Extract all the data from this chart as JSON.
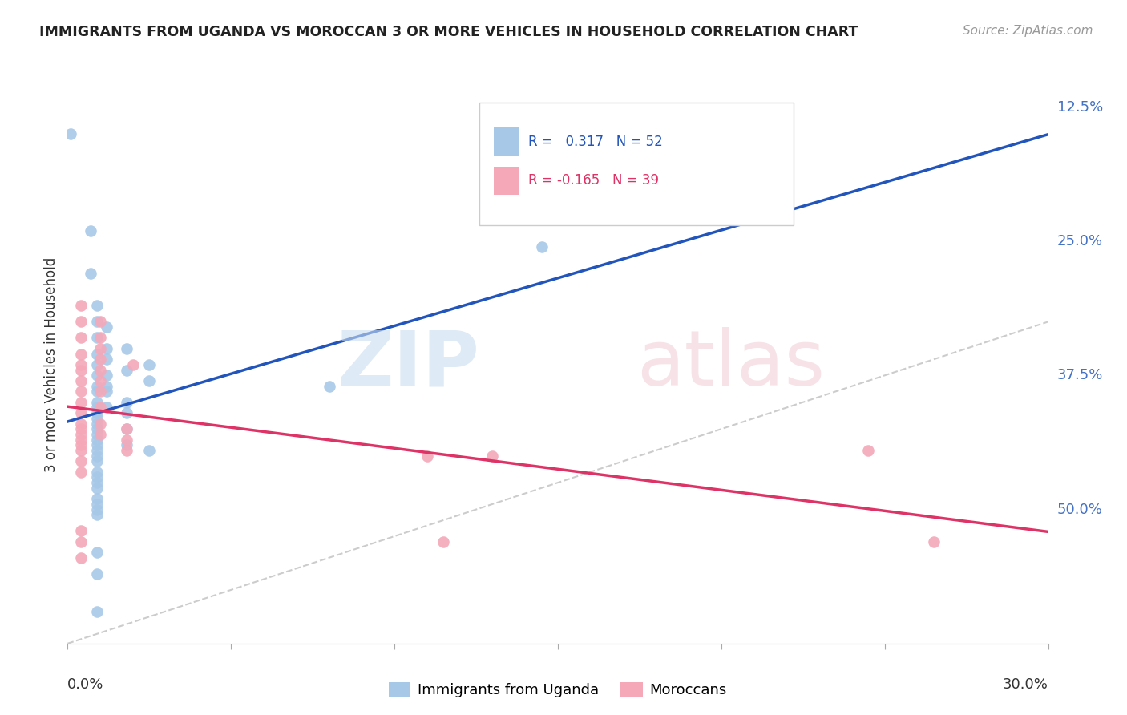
{
  "title": "IMMIGRANTS FROM UGANDA VS MOROCCAN 3 OR MORE VEHICLES IN HOUSEHOLD CORRELATION CHART",
  "source": "Source: ZipAtlas.com",
  "ylabel": "3 or more Vehicles in Household",
  "right_axis_labels": [
    "50.0%",
    "37.5%",
    "25.0%",
    "12.5%"
  ],
  "xlim": [
    0.0,
    0.3
  ],
  "ylim": [
    0.0,
    0.52
  ],
  "uganda_color": "#a8c8e8",
  "morocco_color": "#f4a8b8",
  "uganda_line_color": "#2255bb",
  "morocco_line_color": "#dd3366",
  "diagonal_color": "#c0c0c0",
  "uganda_points": [
    [
      0.001,
      0.475
    ],
    [
      0.007,
      0.385
    ],
    [
      0.007,
      0.345
    ],
    [
      0.009,
      0.315
    ],
    [
      0.009,
      0.3
    ],
    [
      0.009,
      0.285
    ],
    [
      0.009,
      0.27
    ],
    [
      0.009,
      0.26
    ],
    [
      0.009,
      0.25
    ],
    [
      0.009,
      0.24
    ],
    [
      0.009,
      0.235
    ],
    [
      0.009,
      0.225
    ],
    [
      0.009,
      0.22
    ],
    [
      0.009,
      0.215
    ],
    [
      0.009,
      0.21
    ],
    [
      0.009,
      0.205
    ],
    [
      0.009,
      0.2
    ],
    [
      0.009,
      0.195
    ],
    [
      0.009,
      0.19
    ],
    [
      0.009,
      0.185
    ],
    [
      0.009,
      0.18
    ],
    [
      0.009,
      0.175
    ],
    [
      0.009,
      0.17
    ],
    [
      0.009,
      0.16
    ],
    [
      0.009,
      0.155
    ],
    [
      0.009,
      0.15
    ],
    [
      0.009,
      0.145
    ],
    [
      0.009,
      0.135
    ],
    [
      0.009,
      0.13
    ],
    [
      0.009,
      0.125
    ],
    [
      0.009,
      0.12
    ],
    [
      0.009,
      0.085
    ],
    [
      0.009,
      0.065
    ],
    [
      0.009,
      0.03
    ],
    [
      0.012,
      0.295
    ],
    [
      0.012,
      0.275
    ],
    [
      0.012,
      0.265
    ],
    [
      0.012,
      0.25
    ],
    [
      0.012,
      0.24
    ],
    [
      0.012,
      0.235
    ],
    [
      0.012,
      0.22
    ],
    [
      0.018,
      0.275
    ],
    [
      0.018,
      0.255
    ],
    [
      0.018,
      0.225
    ],
    [
      0.018,
      0.215
    ],
    [
      0.018,
      0.2
    ],
    [
      0.018,
      0.185
    ],
    [
      0.025,
      0.26
    ],
    [
      0.025,
      0.245
    ],
    [
      0.025,
      0.18
    ],
    [
      0.08,
      0.24
    ],
    [
      0.145,
      0.37
    ]
  ],
  "morocco_points": [
    [
      0.004,
      0.315
    ],
    [
      0.004,
      0.3
    ],
    [
      0.004,
      0.285
    ],
    [
      0.004,
      0.27
    ],
    [
      0.004,
      0.26
    ],
    [
      0.004,
      0.255
    ],
    [
      0.004,
      0.245
    ],
    [
      0.004,
      0.235
    ],
    [
      0.004,
      0.225
    ],
    [
      0.004,
      0.215
    ],
    [
      0.004,
      0.205
    ],
    [
      0.004,
      0.2
    ],
    [
      0.004,
      0.195
    ],
    [
      0.004,
      0.19
    ],
    [
      0.004,
      0.185
    ],
    [
      0.004,
      0.18
    ],
    [
      0.004,
      0.17
    ],
    [
      0.004,
      0.16
    ],
    [
      0.004,
      0.105
    ],
    [
      0.004,
      0.095
    ],
    [
      0.004,
      0.08
    ],
    [
      0.01,
      0.3
    ],
    [
      0.01,
      0.285
    ],
    [
      0.01,
      0.275
    ],
    [
      0.01,
      0.265
    ],
    [
      0.01,
      0.255
    ],
    [
      0.01,
      0.245
    ],
    [
      0.01,
      0.235
    ],
    [
      0.01,
      0.22
    ],
    [
      0.01,
      0.205
    ],
    [
      0.01,
      0.195
    ],
    [
      0.018,
      0.2
    ],
    [
      0.018,
      0.19
    ],
    [
      0.018,
      0.18
    ],
    [
      0.02,
      0.26
    ],
    [
      0.11,
      0.175
    ],
    [
      0.115,
      0.095
    ],
    [
      0.13,
      0.175
    ],
    [
      0.245,
      0.18
    ],
    [
      0.265,
      0.095
    ]
  ]
}
